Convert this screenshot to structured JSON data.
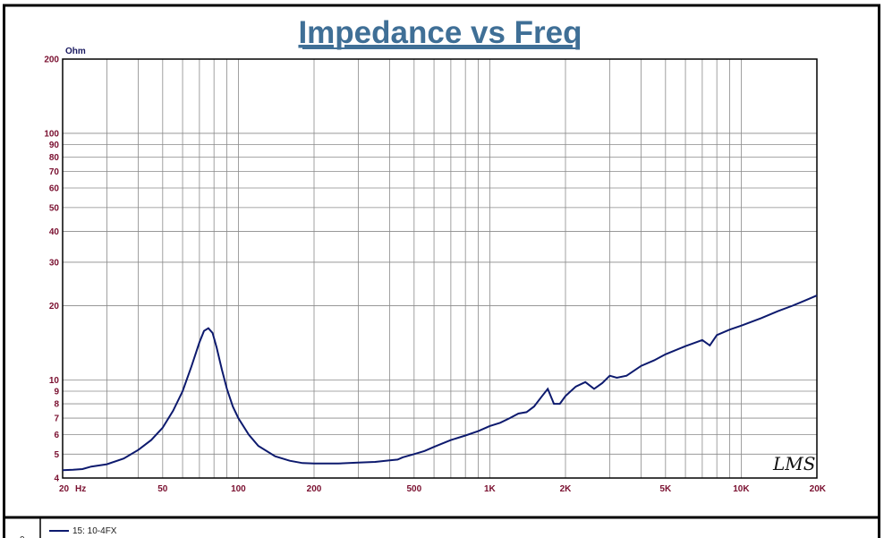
{
  "chart_data": {
    "type": "line",
    "title": "Impedance vs Freq",
    "y_unit": "Ohm",
    "x_scale": "log",
    "y_scale": "log",
    "xlim": [
      20,
      20000
    ],
    "ylim": [
      4,
      200
    ],
    "grid": true,
    "x_ticks": [
      {
        "value": 20,
        "label": "20"
      },
      {
        "value": 50,
        "label": "50"
      },
      {
        "value": 100,
        "label": "100"
      },
      {
        "value": 200,
        "label": "200"
      },
      {
        "value": 500,
        "label": "500"
      },
      {
        "value": 1000,
        "label": "1K"
      },
      {
        "value": 2000,
        "label": "2K"
      },
      {
        "value": 5000,
        "label": "5K"
      },
      {
        "value": 10000,
        "label": "10K"
      },
      {
        "value": 20000,
        "label": "20K"
      }
    ],
    "x_unit": "Hz",
    "y_ticks": [
      {
        "value": 4,
        "label": "4"
      },
      {
        "value": 5,
        "label": "5"
      },
      {
        "value": 6,
        "label": "6"
      },
      {
        "value": 7,
        "label": "7"
      },
      {
        "value": 8,
        "label": "8"
      },
      {
        "value": 9,
        "label": "9"
      },
      {
        "value": 10,
        "label": "10"
      },
      {
        "value": 20,
        "label": "20"
      },
      {
        "value": 30,
        "label": "30"
      },
      {
        "value": 40,
        "label": "40"
      },
      {
        "value": 50,
        "label": "50"
      },
      {
        "value": 60,
        "label": "60"
      },
      {
        "value": 70,
        "label": "70"
      },
      {
        "value": 80,
        "label": "80"
      },
      {
        "value": 90,
        "label": "90"
      },
      {
        "value": 100,
        "label": "100"
      },
      {
        "value": 200,
        "label": "200"
      }
    ],
    "series": [
      {
        "name": "15: 10-4FX",
        "color": "#0d1a6e",
        "points": [
          [
            20,
            4.3
          ],
          [
            22,
            4.32
          ],
          [
            24,
            4.35
          ],
          [
            26,
            4.45
          ],
          [
            30,
            4.55
          ],
          [
            35,
            4.8
          ],
          [
            40,
            5.2
          ],
          [
            45,
            5.7
          ],
          [
            50,
            6.4
          ],
          [
            55,
            7.5
          ],
          [
            60,
            9.0
          ],
          [
            65,
            11.3
          ],
          [
            70,
            14.2
          ],
          [
            73,
            15.8
          ],
          [
            76,
            16.2
          ],
          [
            79,
            15.5
          ],
          [
            82,
            13.5
          ],
          [
            86,
            11.0
          ],
          [
            90,
            9.2
          ],
          [
            95,
            7.8
          ],
          [
            100,
            7.0
          ],
          [
            110,
            6.0
          ],
          [
            120,
            5.4
          ],
          [
            140,
            4.9
          ],
          [
            160,
            4.7
          ],
          [
            180,
            4.6
          ],
          [
            200,
            4.58
          ],
          [
            250,
            4.58
          ],
          [
            300,
            4.62
          ],
          [
            350,
            4.65
          ],
          [
            400,
            4.72
          ],
          [
            430,
            4.75
          ],
          [
            450,
            4.85
          ],
          [
            500,
            5.0
          ],
          [
            550,
            5.15
          ],
          [
            600,
            5.35
          ],
          [
            700,
            5.7
          ],
          [
            800,
            5.95
          ],
          [
            900,
            6.2
          ],
          [
            1000,
            6.5
          ],
          [
            1100,
            6.7
          ],
          [
            1200,
            7.0
          ],
          [
            1300,
            7.3
          ],
          [
            1400,
            7.4
          ],
          [
            1500,
            7.8
          ],
          [
            1600,
            8.5
          ],
          [
            1700,
            9.2
          ],
          [
            1800,
            8.0
          ],
          [
            1900,
            8.0
          ],
          [
            2000,
            8.6
          ],
          [
            2200,
            9.4
          ],
          [
            2400,
            9.8
          ],
          [
            2600,
            9.2
          ],
          [
            2800,
            9.7
          ],
          [
            3000,
            10.4
          ],
          [
            3200,
            10.2
          ],
          [
            3500,
            10.4
          ],
          [
            4000,
            11.4
          ],
          [
            4500,
            12.0
          ],
          [
            5000,
            12.7
          ],
          [
            6000,
            13.7
          ],
          [
            7000,
            14.5
          ],
          [
            7500,
            13.8
          ],
          [
            8000,
            15.2
          ],
          [
            9000,
            16.0
          ],
          [
            10000,
            16.6
          ],
          [
            12000,
            17.8
          ],
          [
            14000,
            19.0
          ],
          [
            16000,
            20.0
          ],
          [
            18000,
            21.0
          ],
          [
            20000,
            22.0
          ]
        ]
      }
    ]
  },
  "watermark": "LMS",
  "legend_number": "0",
  "colors": {
    "title": "#3f6f96",
    "tick_label": "#7a1030",
    "grid": "#8a8a8a",
    "trace": "#0d1a6e",
    "frame": "#000000"
  }
}
